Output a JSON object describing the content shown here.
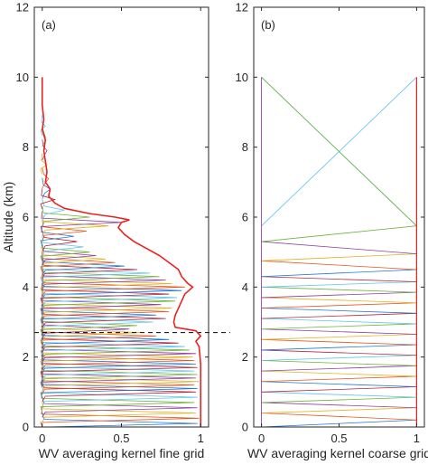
{
  "chart_data": [
    {
      "type": "line",
      "panel_label": "(a)",
      "xlabel": "WV averaging kernel fine grid",
      "ylabel": "Altitude (km)",
      "xlim": [
        -0.05,
        1.05
      ],
      "ylim": [
        0,
        12
      ],
      "xticks": [
        0,
        0.5,
        1
      ],
      "xtick_labels": [
        "0",
        "0.5",
        "1"
      ],
      "yticks": [
        0,
        2,
        4,
        6,
        8,
        10,
        12
      ],
      "ytick_labels": [
        "0",
        "2",
        "4",
        "6",
        "8",
        "10",
        "12"
      ],
      "grid": false,
      "reference_line": {
        "style": "dashed",
        "color": "#000000",
        "y": 2.7
      },
      "envelope": {
        "color": "#e8231f",
        "points": [
          [
            0.0,
            10.0
          ],
          [
            0.0,
            9.2
          ],
          [
            0.01,
            8.8
          ],
          [
            0.0,
            8.5
          ],
          [
            0.02,
            8.2
          ],
          [
            0.01,
            7.9
          ],
          [
            0.02,
            7.6
          ],
          [
            0.03,
            7.3
          ],
          [
            0.02,
            7.0
          ],
          [
            0.05,
            6.8
          ],
          [
            0.04,
            6.6
          ],
          [
            0.08,
            6.4
          ],
          [
            0.14,
            6.25
          ],
          [
            0.3,
            6.1
          ],
          [
            0.46,
            6.0
          ],
          [
            0.55,
            5.92
          ],
          [
            0.5,
            5.85
          ],
          [
            0.48,
            5.7
          ],
          [
            0.52,
            5.5
          ],
          [
            0.58,
            5.3
          ],
          [
            0.66,
            5.1
          ],
          [
            0.74,
            4.9
          ],
          [
            0.8,
            4.7
          ],
          [
            0.86,
            4.5
          ],
          [
            0.88,
            4.3
          ],
          [
            0.92,
            4.1
          ],
          [
            0.95,
            4.0
          ],
          [
            0.9,
            3.8
          ],
          [
            0.88,
            3.6
          ],
          [
            0.86,
            3.4
          ],
          [
            0.84,
            3.2
          ],
          [
            0.83,
            3.0
          ],
          [
            0.84,
            2.85
          ],
          [
            0.97,
            2.75
          ],
          [
            1.0,
            2.6
          ],
          [
            0.97,
            2.45
          ],
          [
            0.99,
            2.3
          ],
          [
            1.0,
            1.8
          ],
          [
            1.0,
            1.0
          ],
          [
            1.0,
            0.0
          ]
        ]
      },
      "kernel_colors": [
        "#1f77d4",
        "#e8531f",
        "#e3b21a",
        "#8e3fa0",
        "#6fb33a",
        "#5ec3ef",
        "#b2283c"
      ],
      "kernels": [
        {
          "peak_alt": 0.1,
          "peak": 0.98
        },
        {
          "peak_alt": 0.25,
          "peak": 0.99
        },
        {
          "peak_alt": 0.4,
          "peak": 0.97
        },
        {
          "peak_alt": 0.55,
          "peak": 0.98
        },
        {
          "peak_alt": 0.7,
          "peak": 0.96
        },
        {
          "peak_alt": 0.85,
          "peak": 0.98
        },
        {
          "peak_alt": 1.0,
          "peak": 0.97
        },
        {
          "peak_alt": 1.1,
          "peak": 0.98
        },
        {
          "peak_alt": 1.2,
          "peak": 0.96
        },
        {
          "peak_alt": 1.3,
          "peak": 0.99
        },
        {
          "peak_alt": 1.4,
          "peak": 0.97
        },
        {
          "peak_alt": 1.5,
          "peak": 0.98
        },
        {
          "peak_alt": 1.6,
          "peak": 0.96
        },
        {
          "peak_alt": 1.7,
          "peak": 0.98
        },
        {
          "peak_alt": 1.8,
          "peak": 0.97
        },
        {
          "peak_alt": 1.9,
          "peak": 0.96
        },
        {
          "peak_alt": 2.0,
          "peak": 0.95
        },
        {
          "peak_alt": 2.1,
          "peak": 0.97
        },
        {
          "peak_alt": 2.2,
          "peak": 0.93
        },
        {
          "peak_alt": 2.3,
          "peak": 0.9
        },
        {
          "peak_alt": 2.4,
          "peak": 0.86
        },
        {
          "peak_alt": 2.5,
          "peak": 0.8
        },
        {
          "peak_alt": 2.6,
          "peak": 0.72
        },
        {
          "peak_alt": 2.7,
          "peak": 0.62
        },
        {
          "peak_alt": 2.8,
          "peak": 0.55
        },
        {
          "peak_alt": 2.9,
          "peak": 0.6
        },
        {
          "peak_alt": 3.0,
          "peak": 0.7
        },
        {
          "peak_alt": 3.1,
          "peak": 0.78
        },
        {
          "peak_alt": 3.2,
          "peak": 0.72
        },
        {
          "peak_alt": 3.3,
          "peak": 0.8
        },
        {
          "peak_alt": 3.4,
          "peak": 0.82
        },
        {
          "peak_alt": 3.5,
          "peak": 0.75
        },
        {
          "peak_alt": 3.6,
          "peak": 0.84
        },
        {
          "peak_alt": 3.7,
          "peak": 0.85
        },
        {
          "peak_alt": 3.8,
          "peak": 0.8
        },
        {
          "peak_alt": 3.9,
          "peak": 0.88
        },
        {
          "peak_alt": 4.0,
          "peak": 0.9
        },
        {
          "peak_alt": 4.1,
          "peak": 0.82
        },
        {
          "peak_alt": 4.2,
          "peak": 0.78
        },
        {
          "peak_alt": 4.3,
          "peak": 0.74
        },
        {
          "peak_alt": 4.4,
          "peak": 0.68
        },
        {
          "peak_alt": 4.5,
          "peak": 0.6
        },
        {
          "peak_alt": 4.6,
          "peak": 0.52
        },
        {
          "peak_alt": 4.7,
          "peak": 0.46
        },
        {
          "peak_alt": 4.8,
          "peak": 0.4
        },
        {
          "peak_alt": 4.9,
          "peak": 0.34
        },
        {
          "peak_alt": 5.0,
          "peak": 0.3
        },
        {
          "peak_alt": 5.15,
          "peak": 0.26
        },
        {
          "peak_alt": 5.3,
          "peak": 0.22
        },
        {
          "peak_alt": 5.45,
          "peak": 0.2
        },
        {
          "peak_alt": 5.6,
          "peak": 0.28
        },
        {
          "peak_alt": 5.75,
          "peak": 0.42
        },
        {
          "peak_alt": 5.85,
          "peak": 0.5
        },
        {
          "peak_alt": 6.0,
          "peak": 0.3
        },
        {
          "peak_alt": 6.2,
          "peak": 0.14
        },
        {
          "peak_alt": 6.5,
          "peak": 0.08
        },
        {
          "peak_alt": 6.8,
          "peak": 0.05
        },
        {
          "peak_alt": 7.1,
          "peak": 0.04
        },
        {
          "peak_alt": 7.5,
          "peak": 0.03
        },
        {
          "peak_alt": 7.9,
          "peak": 0.03
        },
        {
          "peak_alt": 8.3,
          "peak": 0.02
        },
        {
          "peak_alt": 8.6,
          "peak": 0.02
        }
      ]
    },
    {
      "type": "line",
      "panel_label": "(b)",
      "xlabel": "WV averaging kernel coarse grid",
      "ylabel": "",
      "xlim": [
        -0.05,
        1.05
      ],
      "ylim": [
        0,
        12
      ],
      "xticks": [
        0,
        0.5,
        1
      ],
      "xtick_labels": [
        "0",
        "0.5",
        "1"
      ],
      "yticks": [
        0,
        2,
        4,
        6,
        8,
        10,
        12
      ],
      "ytick_labels": [
        "0",
        "2",
        "4",
        "6",
        "8",
        "10",
        "12"
      ],
      "grid": false,
      "kernel_colors": [
        "#1f77d4",
        "#e8531f",
        "#e3b21a",
        "#8e3fa0",
        "#6fb33a",
        "#5ec3ef",
        "#b2283c"
      ],
      "levels": [
        0.0,
        0.2,
        0.4,
        0.55,
        0.7,
        0.85,
        1.0,
        1.15,
        1.3,
        1.45,
        1.6,
        1.75,
        1.9,
        2.05,
        2.2,
        2.35,
        2.5,
        2.65,
        2.8,
        2.95,
        3.1,
        3.25,
        3.4,
        3.55,
        3.7,
        3.85,
        4.0,
        4.15,
        4.3,
        4.5,
        4.75,
        4.95,
        5.3,
        5.75,
        10.0
      ],
      "right_boundary_color": "#e8231f"
    }
  ]
}
